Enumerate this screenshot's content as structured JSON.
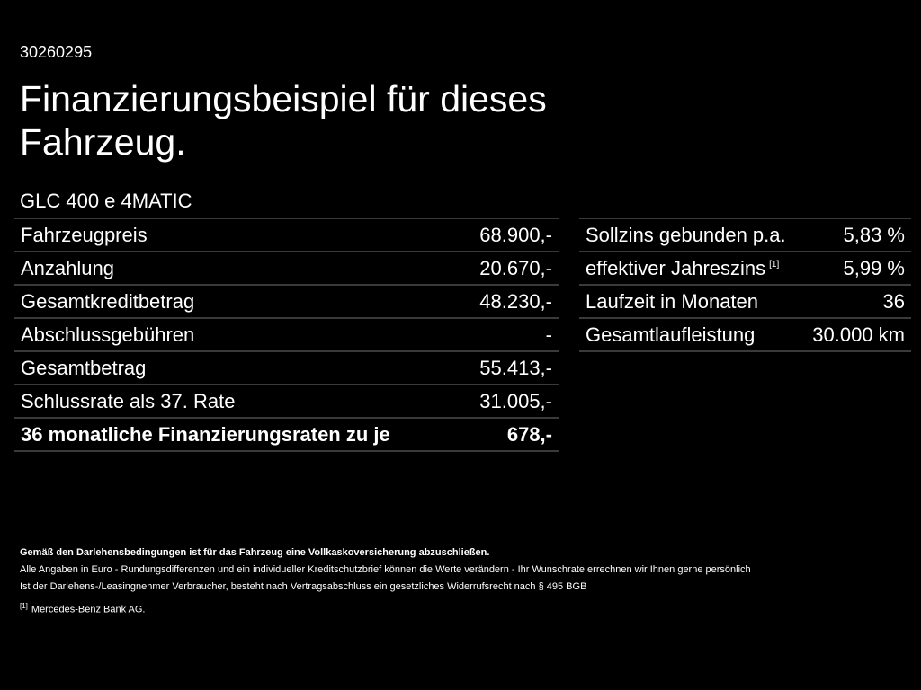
{
  "ref_id": "30260295",
  "title": "Finanzierungsbeispiel für dieses Fahrzeug.",
  "model": "GLC 400 e 4MATIC",
  "left_table": [
    {
      "label": "Fahrzeugpreis",
      "value": "68.900,-"
    },
    {
      "label": "Anzahlung",
      "value": "20.670,-"
    },
    {
      "label": "Gesamtkreditbetrag",
      "value": "48.230,-"
    },
    {
      "label": "Abschlussgebühren",
      "value": "-"
    },
    {
      "label": "Gesamtbetrag",
      "value": "55.413,-"
    },
    {
      "label": "Schlussrate als 37. Rate",
      "value": "31.005,-"
    },
    {
      "label": "36 monatliche Finanzierungsraten zu je",
      "value": "678,-"
    }
  ],
  "right_table": [
    {
      "label": "Sollzins gebunden p.a.",
      "value": "5,83 %"
    },
    {
      "label": "effektiver Jahreszins",
      "sup": "[1]",
      "value": "5,99 %"
    },
    {
      "label": "Laufzeit in Monaten",
      "value": "36"
    },
    {
      "label": "Gesamtlaufleistung",
      "value": "30.000 km"
    }
  ],
  "footnotes": {
    "insurance": "Gemäß den Darlehensbedingungen ist für das Fahrzeug eine Vollkaskoversicherung abzuschließen.",
    "disclaimer": "Alle Angaben in Euro - Rundungsdifferenzen und ein individueller Kreditschutzbrief können die Werte verändern - Ihr Wunschrate errechnen wir Ihnen gerne persönlich",
    "consumer": "Ist der Darlehens-/Leasingnehmer Verbraucher, besteht nach Vertragsabschluss ein gesetzliches Widerrufsrecht nach § 495 BGB",
    "fn1_mark": "[1]",
    "fn1_text": "Mercedes-Benz Bank AG."
  }
}
